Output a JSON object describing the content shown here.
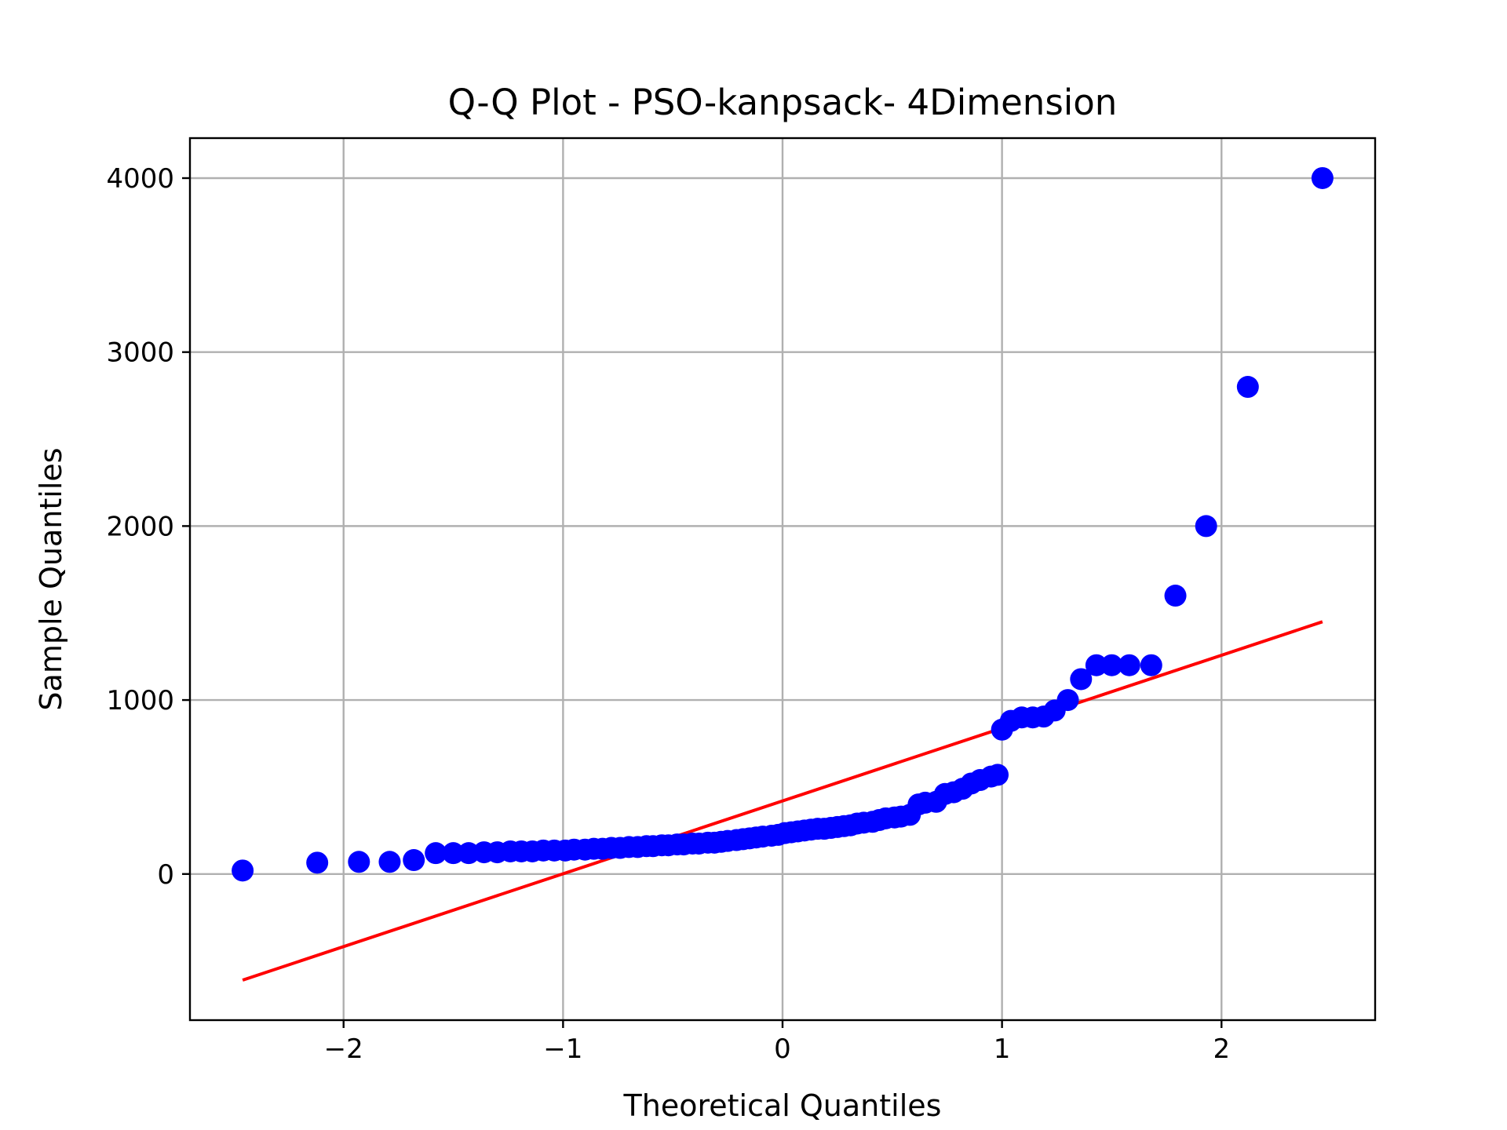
{
  "chart_data": {
    "type": "scatter",
    "title": "Q-Q Plot - PSO-kanpsack- 4Dimension",
    "xlabel": "Theoretical Quantiles",
    "ylabel": "Sample Quantiles",
    "xlim": [
      -2.7,
      2.7
    ],
    "ylim": [
      -840,
      4230
    ],
    "grid": true,
    "xticks": [
      -2,
      -1,
      0,
      1,
      2
    ],
    "xtick_labels": [
      "−2",
      "−1",
      "0",
      "1",
      "2"
    ],
    "yticks": [
      0,
      1000,
      2000,
      3000,
      4000
    ],
    "ytick_labels": [
      "0",
      "1000",
      "2000",
      "3000",
      "4000"
    ],
    "series": [
      {
        "type": "scatter",
        "color": "#0000ff",
        "points": [
          [
            -2.46,
            20
          ],
          [
            -2.12,
            65
          ],
          [
            -1.93,
            70
          ],
          [
            -1.79,
            70
          ],
          [
            -1.68,
            80
          ],
          [
            -1.58,
            120
          ],
          [
            -1.5,
            120
          ],
          [
            -1.43,
            120
          ],
          [
            -1.36,
            125
          ],
          [
            -1.3,
            125
          ],
          [
            -1.24,
            130
          ],
          [
            -1.19,
            130
          ],
          [
            -1.14,
            130
          ],
          [
            -1.09,
            135
          ],
          [
            -1.04,
            135
          ],
          [
            -0.99,
            135
          ],
          [
            -0.95,
            140
          ],
          [
            -0.9,
            140
          ],
          [
            -0.86,
            145
          ],
          [
            -0.82,
            145
          ],
          [
            -0.78,
            150
          ],
          [
            -0.74,
            150
          ],
          [
            -0.7,
            155
          ],
          [
            -0.66,
            155
          ],
          [
            -0.62,
            160
          ],
          [
            -0.59,
            160
          ],
          [
            -0.55,
            165
          ],
          [
            -0.52,
            165
          ],
          [
            -0.48,
            170
          ],
          [
            -0.45,
            170
          ],
          [
            -0.41,
            175
          ],
          [
            -0.38,
            175
          ],
          [
            -0.34,
            180
          ],
          [
            -0.31,
            180
          ],
          [
            -0.28,
            185
          ],
          [
            -0.25,
            190
          ],
          [
            -0.21,
            195
          ],
          [
            -0.18,
            200
          ],
          [
            -0.15,
            205
          ],
          [
            -0.12,
            210
          ],
          [
            -0.09,
            215
          ],
          [
            -0.05,
            220
          ],
          [
            -0.02,
            225
          ],
          [
            0.01,
            235
          ],
          [
            0.04,
            240
          ],
          [
            0.07,
            245
          ],
          [
            0.1,
            250
          ],
          [
            0.13,
            255
          ],
          [
            0.16,
            260
          ],
          [
            0.19,
            260
          ],
          [
            0.22,
            265
          ],
          [
            0.25,
            270
          ],
          [
            0.28,
            275
          ],
          [
            0.31,
            280
          ],
          [
            0.34,
            290
          ],
          [
            0.37,
            295
          ],
          [
            0.41,
            300
          ],
          [
            0.44,
            310
          ],
          [
            0.47,
            320
          ],
          [
            0.51,
            325
          ],
          [
            0.54,
            330
          ],
          [
            0.58,
            340
          ],
          [
            0.62,
            400
          ],
          [
            0.65,
            410
          ],
          [
            0.7,
            415
          ],
          [
            0.74,
            460
          ],
          [
            0.78,
            470
          ],
          [
            0.82,
            490
          ],
          [
            0.86,
            520
          ],
          [
            0.9,
            540
          ],
          [
            0.95,
            560
          ],
          [
            0.98,
            570
          ],
          [
            1.0,
            830
          ],
          [
            1.04,
            880
          ],
          [
            1.09,
            900
          ],
          [
            1.14,
            900
          ],
          [
            1.19,
            905
          ],
          [
            1.24,
            940
          ],
          [
            1.3,
            1000
          ],
          [
            1.36,
            1120
          ],
          [
            1.43,
            1200
          ],
          [
            1.5,
            1200
          ],
          [
            1.58,
            1200
          ],
          [
            1.68,
            1200
          ],
          [
            1.79,
            1600
          ],
          [
            1.93,
            2000
          ],
          [
            2.12,
            2800
          ],
          [
            2.46,
            4000
          ]
        ]
      },
      {
        "type": "line",
        "color": "#ff0000",
        "points": [
          [
            -2.46,
            -610
          ],
          [
            2.46,
            1450
          ]
        ]
      }
    ]
  }
}
